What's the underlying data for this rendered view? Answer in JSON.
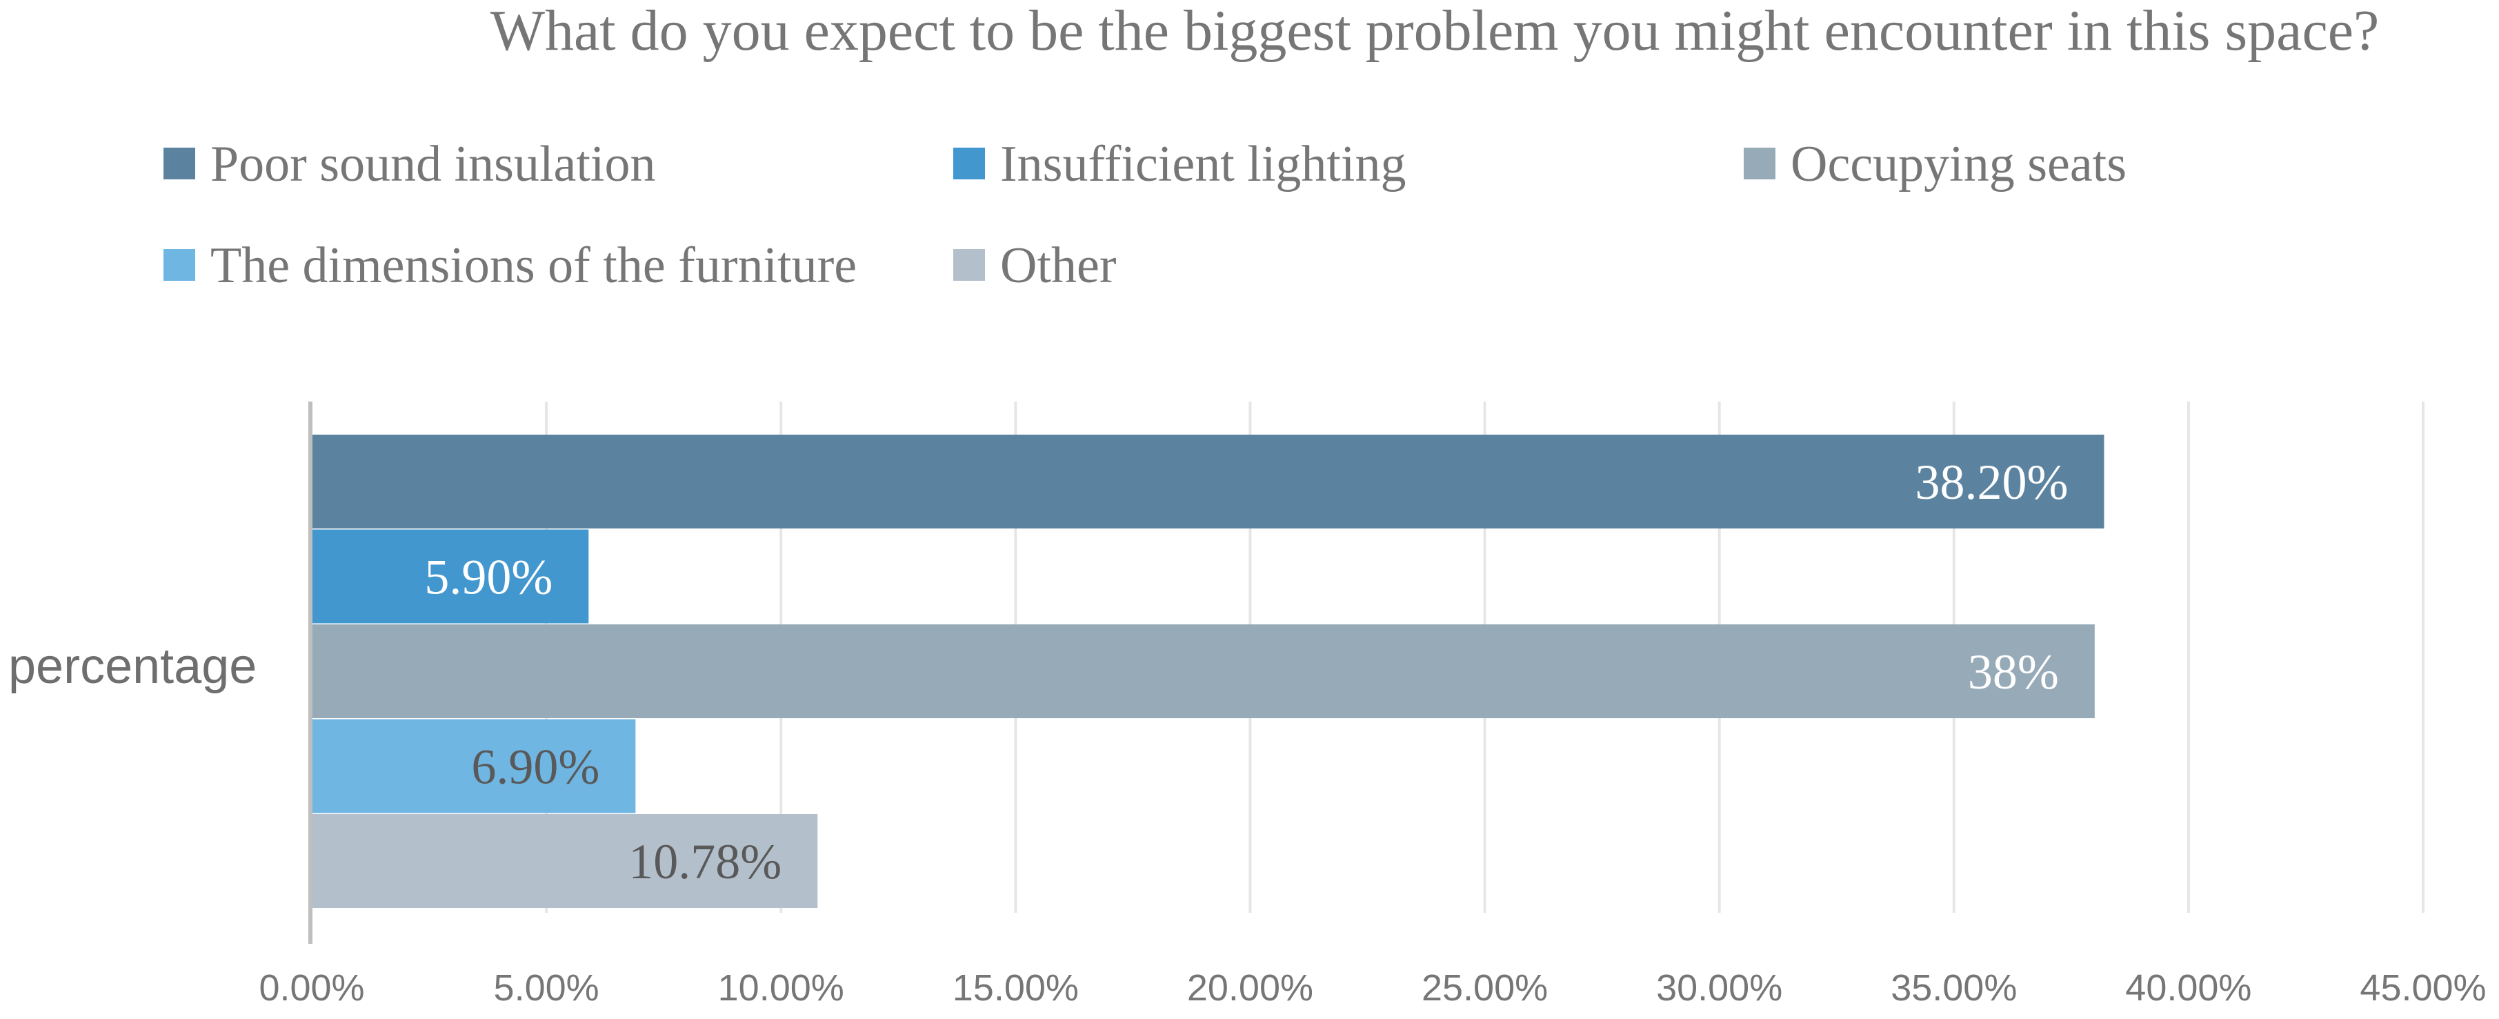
{
  "chart_data": {
    "type": "bar",
    "orientation": "horizontal",
    "title": "What do you expect to be the biggest problem you might encounter in this space?",
    "categories": [
      "percentage"
    ],
    "series": [
      {
        "name": "Poor sound insulation",
        "values": [
          38.2
        ],
        "label": "38.20%",
        "color": "#5b83a0",
        "label_color": "#ffffff"
      },
      {
        "name": "Insufficient lighting",
        "values": [
          5.9
        ],
        "label": "5.90%",
        "color": "#4397cf",
        "label_color": "#ffffff"
      },
      {
        "name": "Occupying seats",
        "values": [
          38
        ],
        "label": "38%",
        "color": "#97aab8",
        "label_color": "#ffffff"
      },
      {
        "name": "The dimensions of the furniture",
        "values": [
          6.9
        ],
        "label": "6.90%",
        "color": "#6fb6e3",
        "label_color": "#595959"
      },
      {
        "name": "Other",
        "values": [
          10.78
        ],
        "label": "10.78%",
        "color": "#b3c0cc",
        "label_color": "#595959"
      }
    ],
    "xlim": [
      0,
      45
    ],
    "x_ticks": [
      0,
      5,
      10,
      15,
      20,
      25,
      30,
      35,
      40,
      45
    ],
    "x_tick_labels": [
      "0.00%",
      "5.00%",
      "10.00%",
      "15.00%",
      "20.00%",
      "25.00%",
      "30.00%",
      "35.00%",
      "40.00%",
      "45.00%"
    ],
    "grid": true,
    "legend_position": "top"
  }
}
